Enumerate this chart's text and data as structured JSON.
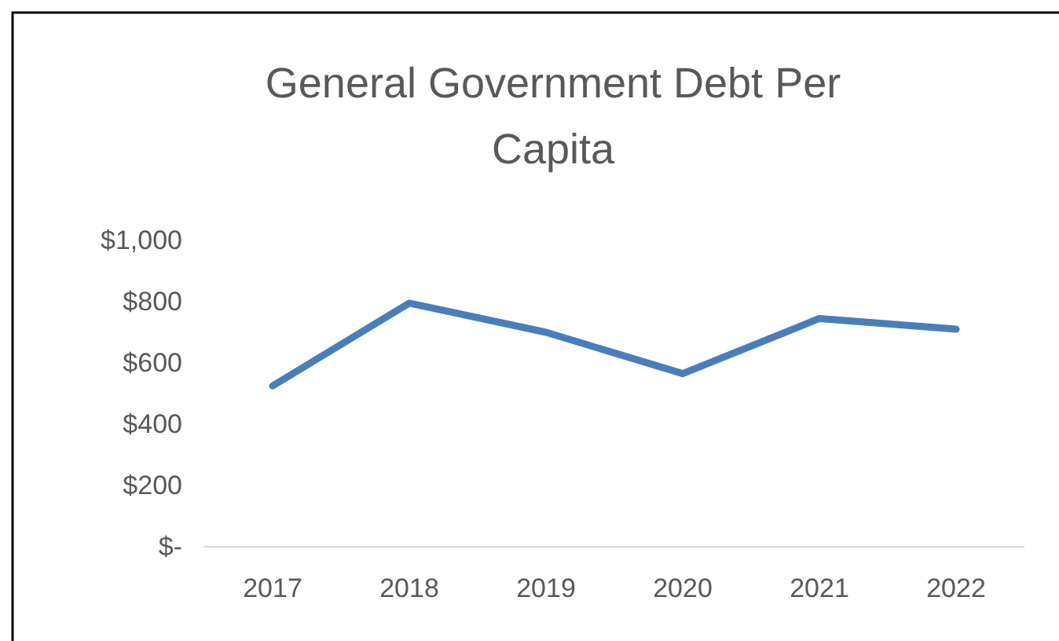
{
  "chart_data": {
    "type": "line",
    "title": "General Government Debt Per Capita",
    "categories": [
      "2017",
      "2018",
      "2019",
      "2020",
      "2021",
      "2022"
    ],
    "series": [
      {
        "color": "#4a7ebb",
        "values": [
          525,
          795,
          700,
          565,
          745,
          710
        ]
      }
    ],
    "ylim": [
      0,
      1000
    ],
    "yticks": [
      {
        "value": 0,
        "label": "$-"
      },
      {
        "value": 200,
        "label": "$200"
      },
      {
        "value": 400,
        "label": "$400"
      },
      {
        "value": 600,
        "label": "$600"
      },
      {
        "value": 800,
        "label": "$800"
      },
      {
        "value": 1000,
        "label": "$1,000"
      }
    ],
    "marker": "none",
    "line_style": "solid"
  }
}
